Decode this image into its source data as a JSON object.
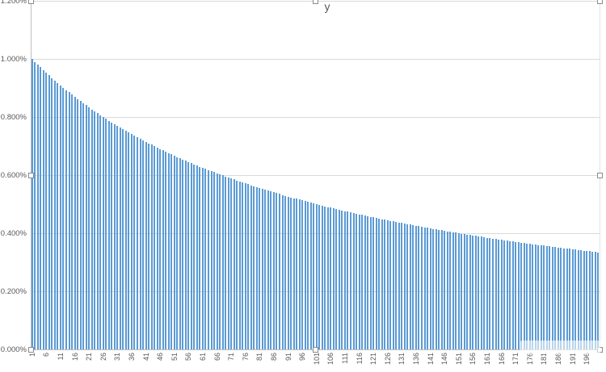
{
  "chart_data": {
    "type": "bar",
    "title": "y",
    "legend": "none",
    "grid": "horizontal",
    "plot_selected": true,
    "x_first": 1,
    "x_last": 200,
    "x_tick_labels": [
      "1",
      "6",
      "11",
      "16",
      "21",
      "26",
      "31",
      "36",
      "41",
      "46",
      "51",
      "56",
      "61",
      "66",
      "71",
      "76",
      "81",
      "86",
      "91",
      "96",
      "101",
      "106",
      "111",
      "116",
      "121",
      "126",
      "131",
      "136",
      "141",
      "146",
      "151",
      "156",
      "161",
      "166",
      "171",
      "176",
      "181",
      "186",
      "191",
      "196"
    ],
    "x_tick_every": 5,
    "y_tick_labels": [
      "0.000%",
      "0.200%",
      "0.400%",
      "0.600%",
      "0.800%",
      "1.000%",
      "1.200%"
    ],
    "ylim": [
      0,
      1.2
    ],
    "y_number_format": "0.000%",
    "series_name": "y",
    "values_percent": [
      1.0,
      0.9901,
      0.9804,
      0.9709,
      0.9615,
      0.9524,
      0.9434,
      0.9346,
      0.9259,
      0.9174,
      0.9091,
      0.9009,
      0.8929,
      0.885,
      0.8772,
      0.8696,
      0.8621,
      0.8547,
      0.8475,
      0.8403,
      0.8333,
      0.8264,
      0.8197,
      0.813,
      0.8065,
      0.8,
      0.7937,
      0.7874,
      0.7813,
      0.7752,
      0.7692,
      0.7634,
      0.7576,
      0.7519,
      0.7463,
      0.7407,
      0.7353,
      0.7299,
      0.7246,
      0.7194,
      0.7143,
      0.7092,
      0.7042,
      0.6993,
      0.6944,
      0.6897,
      0.6849,
      0.6803,
      0.6757,
      0.6711,
      0.6667,
      0.6623,
      0.6579,
      0.6536,
      0.6494,
      0.6452,
      0.641,
      0.6369,
      0.6329,
      0.6289,
      0.625,
      0.6211,
      0.6173,
      0.6135,
      0.6098,
      0.6061,
      0.6024,
      0.5988,
      0.5952,
      0.5917,
      0.5882,
      0.5848,
      0.5814,
      0.578,
      0.5747,
      0.5714,
      0.5682,
      0.565,
      0.5618,
      0.5587,
      0.5556,
      0.5525,
      0.5495,
      0.5464,
      0.5435,
      0.5405,
      0.5376,
      0.5348,
      0.5319,
      0.5291,
      0.5263,
      0.5236,
      0.5208,
      0.5181,
      0.5155,
      0.5128,
      0.5102,
      0.5076,
      0.5051,
      0.5025,
      0.5,
      0.4975,
      0.495,
      0.4926,
      0.4902,
      0.4878,
      0.4854,
      0.4831,
      0.4808,
      0.4785,
      0.4762,
      0.4739,
      0.4717,
      0.4695,
      0.4673,
      0.4651,
      0.463,
      0.4608,
      0.4587,
      0.4566,
      0.4545,
      0.4525,
      0.4505,
      0.4484,
      0.4464,
      0.4444,
      0.4425,
      0.4405,
      0.4386,
      0.4367,
      0.4348,
      0.4329,
      0.431,
      0.4292,
      0.4274,
      0.4255,
      0.4237,
      0.4219,
      0.4202,
      0.4184,
      0.4167,
      0.4149,
      0.4132,
      0.4115,
      0.4098,
      0.4082,
      0.4065,
      0.4049,
      0.4032,
      0.4016,
      0.4,
      0.3984,
      0.3968,
      0.3953,
      0.3937,
      0.3922,
      0.3906,
      0.3891,
      0.3876,
      0.3861,
      0.3846,
      0.3831,
      0.3817,
      0.3802,
      0.3788,
      0.3774,
      0.3759,
      0.3745,
      0.3731,
      0.3717,
      0.3704,
      0.369,
      0.3676,
      0.3663,
      0.365,
      0.3636,
      0.3623,
      0.361,
      0.3597,
      0.3584,
      0.3571,
      0.3559,
      0.3546,
      0.3534,
      0.3521,
      0.3509,
      0.3497,
      0.3484,
      0.3472,
      0.346,
      0.3448,
      0.3436,
      0.3425,
      0.3413,
      0.3401,
      0.339,
      0.3378,
      0.3367,
      0.3356,
      0.3344
    ],
    "colors": {
      "bar": "#5b9bd5",
      "gridline": "#d9d9d9",
      "axis_line": "#bfbfbf",
      "labels": "#595959",
      "background": "#ffffff",
      "selection_handle_border": "#8c8c8c"
    },
    "watermark": {
      "visible": true,
      "legible": false
    }
  }
}
